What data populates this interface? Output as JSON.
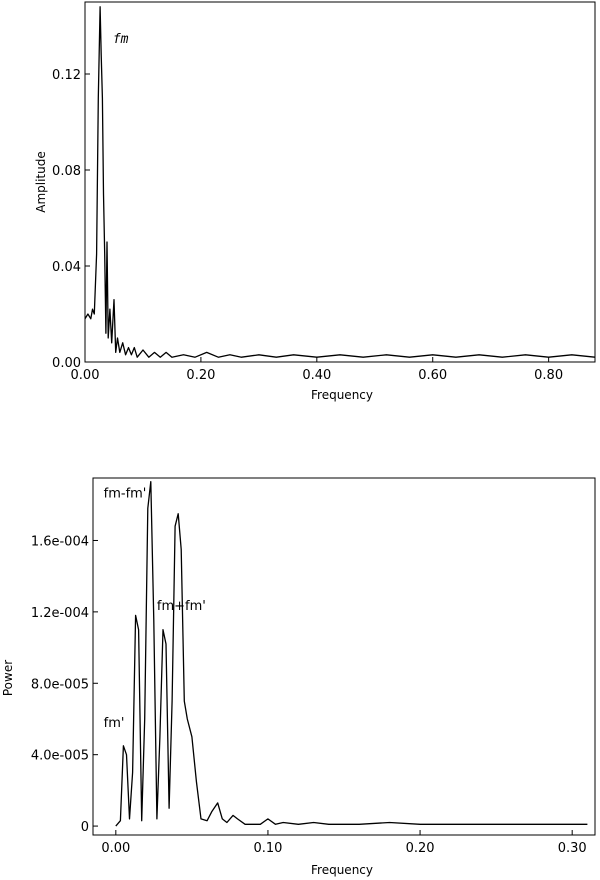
{
  "chart_data": [
    {
      "type": "line",
      "title": "",
      "xlabel": "Frequency",
      "ylabel": "Amplitude",
      "xlim": [
        0.0,
        0.88
      ],
      "ylim": [
        0.0,
        0.15
      ],
      "xticks": [
        "0.00",
        "0.20",
        "0.40",
        "0.60",
        "0.80"
      ],
      "xtick_values": [
        0.0,
        0.2,
        0.4,
        0.6,
        0.8
      ],
      "yticks": [
        "0.00",
        "0.04",
        "0.08",
        "0.12"
      ],
      "ytick_values": [
        0.0,
        0.04,
        0.08,
        0.12
      ],
      "grid": false,
      "annotations": [
        {
          "text": "fm",
          "x": 0.048,
          "y": 0.133
        }
      ],
      "x": [
        0.0,
        0.005,
        0.01,
        0.013,
        0.016,
        0.02,
        0.023,
        0.026,
        0.028,
        0.03,
        0.032,
        0.034,
        0.036,
        0.038,
        0.04,
        0.043,
        0.046,
        0.05,
        0.053,
        0.056,
        0.06,
        0.065,
        0.07,
        0.075,
        0.08,
        0.085,
        0.09,
        0.1,
        0.11,
        0.12,
        0.13,
        0.14,
        0.15,
        0.17,
        0.19,
        0.21,
        0.23,
        0.25,
        0.27,
        0.3,
        0.33,
        0.36,
        0.4,
        0.44,
        0.48,
        0.52,
        0.56,
        0.6,
        0.64,
        0.68,
        0.72,
        0.76,
        0.8,
        0.84,
        0.88
      ],
      "y": [
        0.018,
        0.02,
        0.018,
        0.022,
        0.02,
        0.045,
        0.11,
        0.148,
        0.128,
        0.11,
        0.07,
        0.045,
        0.012,
        0.05,
        0.01,
        0.022,
        0.008,
        0.026,
        0.004,
        0.01,
        0.004,
        0.008,
        0.003,
        0.006,
        0.003,
        0.006,
        0.002,
        0.005,
        0.002,
        0.004,
        0.002,
        0.004,
        0.002,
        0.003,
        0.002,
        0.004,
        0.002,
        0.003,
        0.002,
        0.003,
        0.002,
        0.003,
        0.002,
        0.003,
        0.002,
        0.003,
        0.002,
        0.003,
        0.002,
        0.003,
        0.002,
        0.003,
        0.002,
        0.003,
        0.002
      ]
    },
    {
      "type": "line",
      "title": "",
      "xlabel": "Frequency",
      "ylabel": "Power",
      "xlim": [
        -0.015,
        0.315
      ],
      "ylim": [
        -5e-06,
        0.000195
      ],
      "xticks": [
        "0.00",
        "0.10",
        "0.20",
        "0.30"
      ],
      "xtick_values": [
        0.0,
        0.1,
        0.2,
        0.3
      ],
      "yticks": [
        "0",
        "4.0e-005",
        "8.0e-005",
        "1.2e-004",
        "1.6e-004"
      ],
      "ytick_values": [
        0.0,
        4e-05,
        8e-05,
        0.00012,
        0.00016
      ],
      "grid": false,
      "annotations": [
        {
          "text": "fm-fm'",
          "x": -0.008,
          "y": 0.000184
        },
        {
          "text": "fm+fm'",
          "x": 0.027,
          "y": 0.000121
        },
        {
          "text": "fm'",
          "x": -0.008,
          "y": 5.55e-05
        }
      ],
      "x": [
        0.0,
        0.003,
        0.005,
        0.007,
        0.009,
        0.011,
        0.013,
        0.015,
        0.017,
        0.019,
        0.021,
        0.023,
        0.025,
        0.027,
        0.029,
        0.031,
        0.033,
        0.035,
        0.037,
        0.039,
        0.041,
        0.043,
        0.045,
        0.047,
        0.05,
        0.053,
        0.056,
        0.06,
        0.063,
        0.067,
        0.07,
        0.073,
        0.077,
        0.08,
        0.085,
        0.09,
        0.095,
        0.1,
        0.105,
        0.11,
        0.12,
        0.13,
        0.14,
        0.15,
        0.16,
        0.18,
        0.2,
        0.22,
        0.24,
        0.26,
        0.28,
        0.3,
        0.31
      ],
      "y": [
        0.0,
        3e-06,
        4.5e-05,
        4e-05,
        4e-06,
        3e-05,
        0.000118,
        0.00011,
        3e-06,
        6e-05,
        0.000178,
        0.000193,
        0.000115,
        4e-06,
        5e-05,
        0.00011,
        0.000102,
        1e-05,
        7e-05,
        0.000168,
        0.000175,
        0.000155,
        7e-05,
        6e-05,
        5e-05,
        2.5e-05,
        4e-06,
        3e-06,
        8e-06,
        1.3e-05,
        4e-06,
        2e-06,
        6e-06,
        4e-06,
        1e-06,
        1e-06,
        1e-06,
        4e-06,
        1e-06,
        2e-06,
        1e-06,
        2e-06,
        1e-06,
        1e-06,
        1e-06,
        2e-06,
        1e-06,
        1e-06,
        1e-06,
        1e-06,
        1e-06,
        1e-06,
        1e-06
      ]
    }
  ]
}
